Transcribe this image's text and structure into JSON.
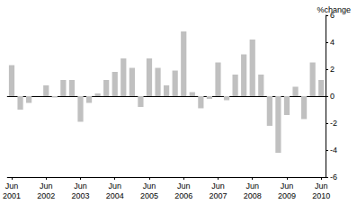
{
  "chart_data": {
    "type": "bar",
    "title": "%change",
    "categories": [
      "Jun 2001",
      null,
      null,
      null,
      "Jun 2002",
      null,
      null,
      null,
      "Jun 2003",
      null,
      null,
      null,
      "Jun 2004",
      null,
      null,
      null,
      "Jun 2005",
      null,
      null,
      null,
      "Jun 2006",
      null,
      null,
      null,
      "Jun 2007",
      null,
      null,
      null,
      "Jun 2008",
      null,
      null,
      null,
      "Jun 2009",
      null,
      null,
      null,
      "Jun 2010"
    ],
    "values": [
      2.3,
      -1.0,
      -0.5,
      0.0,
      0.8,
      -0.1,
      1.2,
      1.2,
      -1.9,
      -0.5,
      0.2,
      1.2,
      1.8,
      2.8,
      2.1,
      -0.8,
      2.8,
      2.1,
      0.8,
      1.9,
      4.8,
      0.3,
      -0.9,
      -0.2,
      2.5,
      -0.3,
      1.6,
      3.1,
      4.2,
      1.6,
      -2.2,
      -4.2,
      -1.4,
      0.7,
      -1.7,
      2.5,
      1.2
    ],
    "color": "#c0c0c0",
    "ylim": [
      -6,
      6
    ],
    "yticks": [
      -6,
      -4,
      -2,
      0,
      2,
      4,
      6
    ],
    "grid": false
  }
}
